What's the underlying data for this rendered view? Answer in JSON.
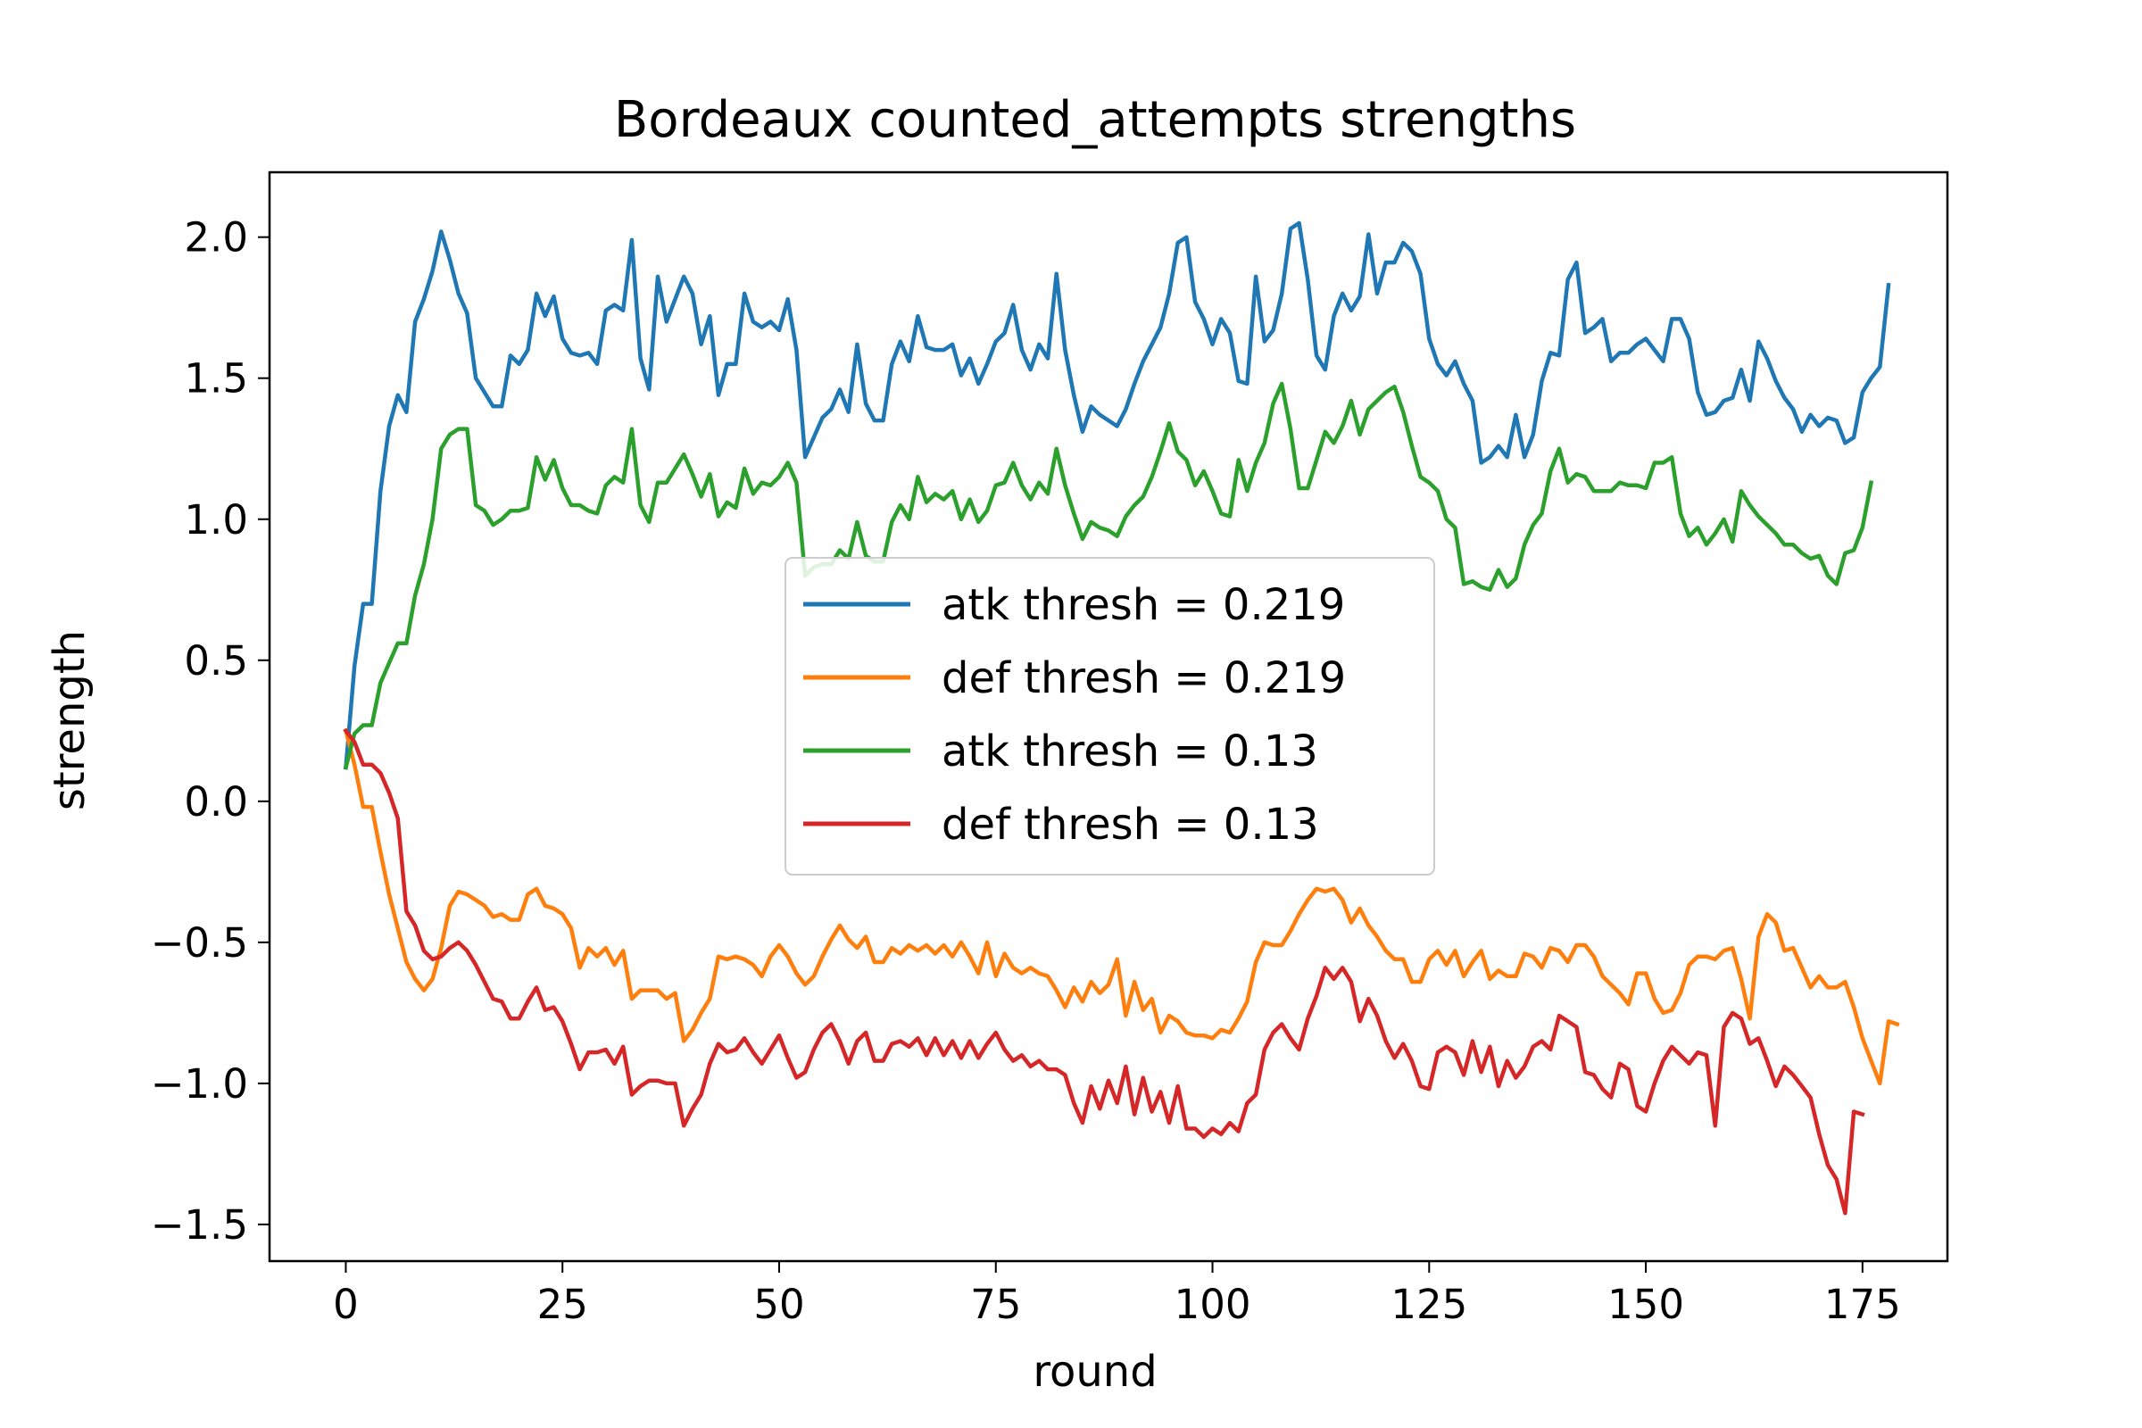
{
  "chart_data": {
    "type": "line",
    "title": "Bordeaux counted_attempts strengths",
    "xlabel": "round",
    "ylabel": "strength",
    "xlim": [
      -8.8,
      184.8
    ],
    "ylim": [
      -1.63,
      2.23
    ],
    "xticks": [
      0,
      25,
      50,
      75,
      100,
      125,
      150,
      175
    ],
    "xtick_labels": [
      "0",
      "25",
      "50",
      "75",
      "100",
      "125",
      "150",
      "175"
    ],
    "yticks": [
      -1.5,
      -1.0,
      -0.5,
      0.0,
      0.5,
      1.0,
      1.5,
      2.0
    ],
    "ytick_labels": [
      "−1.5",
      "−1.0",
      "−0.5",
      "0.0",
      "0.5",
      "1.0",
      "1.5",
      "2.0"
    ],
    "grid": false,
    "legend_position": "center",
    "series": [
      {
        "name": "atk thresh = 0.219",
        "color": "#1f77b4",
        "x_start": 0,
        "values": [
          0.12,
          0.48,
          0.7,
          0.7,
          1.1,
          1.33,
          1.44,
          1.38,
          1.7,
          1.78,
          1.88,
          2.02,
          1.92,
          1.8,
          1.73,
          1.5,
          1.45,
          1.4,
          1.4,
          1.58,
          1.55,
          1.6,
          1.8,
          1.72,
          1.79,
          1.64,
          1.59,
          1.58,
          1.59,
          1.55,
          1.74,
          1.76,
          1.74,
          1.99,
          1.57,
          1.46,
          1.86,
          1.7,
          1.78,
          1.86,
          1.8,
          1.62,
          1.72,
          1.44,
          1.55,
          1.55,
          1.8,
          1.7,
          1.68,
          1.7,
          1.67,
          1.78,
          1.6,
          1.22,
          1.29,
          1.36,
          1.39,
          1.46,
          1.38,
          1.62,
          1.41,
          1.35,
          1.35,
          1.55,
          1.63,
          1.56,
          1.72,
          1.61,
          1.6,
          1.6,
          1.62,
          1.51,
          1.57,
          1.48,
          1.55,
          1.63,
          1.66,
          1.76,
          1.6,
          1.53,
          1.62,
          1.57,
          1.87,
          1.6,
          1.44,
          1.31,
          1.4,
          1.37,
          1.35,
          1.33,
          1.39,
          1.48,
          1.56,
          1.62,
          1.68,
          1.8,
          1.98,
          2.0,
          1.77,
          1.71,
          1.62,
          1.71,
          1.66,
          1.49,
          1.48,
          1.86,
          1.63,
          1.67,
          1.8,
          2.03,
          2.05,
          1.85,
          1.58,
          1.53,
          1.72,
          1.8,
          1.74,
          1.79,
          2.01,
          1.8,
          1.91,
          1.91,
          1.98,
          1.95,
          1.87,
          1.64,
          1.55,
          1.51,
          1.56,
          1.48,
          1.42,
          1.2,
          1.22,
          1.26,
          1.22,
          1.37,
          1.22,
          1.3,
          1.49,
          1.59,
          1.58,
          1.85,
          1.91,
          1.66,
          1.68,
          1.71,
          1.56,
          1.59,
          1.59,
          1.62,
          1.64,
          1.6,
          1.56,
          1.71,
          1.71,
          1.64,
          1.45,
          1.37,
          1.38,
          1.42,
          1.43,
          1.53,
          1.42,
          1.63,
          1.57,
          1.49,
          1.43,
          1.39,
          1.31,
          1.37,
          1.33,
          1.36,
          1.35,
          1.27,
          1.29,
          1.45,
          1.5,
          1.54,
          1.83
        ]
      },
      {
        "name": "def thresh = 0.219",
        "color": "#ff7f0e",
        "x_start": 0,
        "values": [
          0.25,
          0.13,
          -0.02,
          -0.02,
          -0.18,
          -0.33,
          -0.45,
          -0.57,
          -0.63,
          -0.67,
          -0.63,
          -0.52,
          -0.37,
          -0.32,
          -0.33,
          -0.35,
          -0.37,
          -0.41,
          -0.4,
          -0.42,
          -0.42,
          -0.33,
          -0.31,
          -0.37,
          -0.38,
          -0.4,
          -0.45,
          -0.59,
          -0.52,
          -0.55,
          -0.52,
          -0.58,
          -0.53,
          -0.7,
          -0.67,
          -0.67,
          -0.67,
          -0.7,
          -0.68,
          -0.85,
          -0.81,
          -0.75,
          -0.7,
          -0.55,
          -0.56,
          -0.55,
          -0.56,
          -0.58,
          -0.62,
          -0.55,
          -0.51,
          -0.55,
          -0.61,
          -0.65,
          -0.62,
          -0.55,
          -0.49,
          -0.44,
          -0.49,
          -0.52,
          -0.48,
          -0.57,
          -0.57,
          -0.52,
          -0.54,
          -0.51,
          -0.53,
          -0.51,
          -0.54,
          -0.51,
          -0.55,
          -0.5,
          -0.55,
          -0.61,
          -0.5,
          -0.62,
          -0.54,
          -0.59,
          -0.61,
          -0.59,
          -0.61,
          -0.62,
          -0.67,
          -0.73,
          -0.66,
          -0.71,
          -0.64,
          -0.68,
          -0.65,
          -0.56,
          -0.76,
          -0.64,
          -0.74,
          -0.7,
          -0.82,
          -0.76,
          -0.78,
          -0.82,
          -0.83,
          -0.83,
          -0.84,
          -0.81,
          -0.82,
          -0.77,
          -0.71,
          -0.57,
          -0.5,
          -0.51,
          -0.51,
          -0.46,
          -0.4,
          -0.35,
          -0.31,
          -0.32,
          -0.31,
          -0.35,
          -0.43,
          -0.38,
          -0.44,
          -0.48,
          -0.53,
          -0.56,
          -0.56,
          -0.64,
          -0.64,
          -0.56,
          -0.53,
          -0.58,
          -0.53,
          -0.62,
          -0.57,
          -0.53,
          -0.63,
          -0.6,
          -0.62,
          -0.62,
          -0.54,
          -0.55,
          -0.59,
          -0.52,
          -0.53,
          -0.57,
          -0.51,
          -0.51,
          -0.55,
          -0.62,
          -0.65,
          -0.68,
          -0.72,
          -0.61,
          -0.61,
          -0.7,
          -0.75,
          -0.74,
          -0.68,
          -0.58,
          -0.55,
          -0.55,
          -0.56,
          -0.53,
          -0.52,
          -0.63,
          -0.77,
          -0.48,
          -0.4,
          -0.43,
          -0.53,
          -0.52,
          -0.59,
          -0.66,
          -0.62,
          -0.66,
          -0.66,
          -0.64,
          -0.73,
          -0.84,
          -0.92,
          -1.0,
          -0.78,
          -0.79
        ]
      },
      {
        "name": "atk thresh = 0.13",
        "color": "#2ca02c",
        "x_start": 0,
        "values": [
          0.12,
          0.24,
          0.27,
          0.27,
          0.42,
          0.49,
          0.56,
          0.56,
          0.73,
          0.84,
          1.0,
          1.25,
          1.3,
          1.32,
          1.32,
          1.05,
          1.03,
          0.98,
          1.0,
          1.03,
          1.03,
          1.04,
          1.22,
          1.14,
          1.21,
          1.11,
          1.05,
          1.05,
          1.03,
          1.02,
          1.12,
          1.15,
          1.13,
          1.32,
          1.05,
          0.99,
          1.13,
          1.13,
          1.18,
          1.23,
          1.16,
          1.08,
          1.16,
          1.01,
          1.06,
          1.04,
          1.18,
          1.09,
          1.13,
          1.12,
          1.15,
          1.2,
          1.13,
          0.8,
          0.83,
          0.84,
          0.84,
          0.89,
          0.86,
          0.99,
          0.87,
          0.85,
          0.85,
          0.99,
          1.05,
          1.0,
          1.15,
          1.06,
          1.09,
          1.07,
          1.1,
          1.0,
          1.07,
          0.99,
          1.03,
          1.12,
          1.13,
          1.2,
          1.12,
          1.07,
          1.13,
          1.09,
          1.25,
          1.12,
          1.02,
          0.93,
          0.99,
          0.97,
          0.96,
          0.94,
          1.01,
          1.05,
          1.08,
          1.15,
          1.24,
          1.34,
          1.24,
          1.21,
          1.12,
          1.17,
          1.1,
          1.02,
          1.01,
          1.21,
          1.1,
          1.2,
          1.27,
          1.41,
          1.48,
          1.32,
          1.11,
          1.11,
          1.21,
          1.31,
          1.27,
          1.33,
          1.42,
          1.3,
          1.39,
          1.42,
          1.45,
          1.47,
          1.38,
          1.26,
          1.15,
          1.13,
          1.1,
          1.0,
          0.97,
          0.77,
          0.78,
          0.76,
          0.75,
          0.82,
          0.76,
          0.79,
          0.91,
          0.98,
          1.02,
          1.17,
          1.25,
          1.13,
          1.16,
          1.15,
          1.1,
          1.1,
          1.1,
          1.13,
          1.12,
          1.12,
          1.11,
          1.2,
          1.2,
          1.22,
          1.02,
          0.94,
          0.97,
          0.91,
          0.95,
          1.0,
          0.92,
          1.1,
          1.05,
          1.01,
          0.98,
          0.95,
          0.91,
          0.91,
          0.88,
          0.86,
          0.87,
          0.8,
          0.77,
          0.88,
          0.89,
          0.97,
          1.13
        ]
      },
      {
        "name": "def thresh = 0.13",
        "color": "#d62728",
        "x_start": 0,
        "values": [
          0.25,
          0.21,
          0.13,
          0.13,
          0.1,
          0.03,
          -0.06,
          -0.39,
          -0.44,
          -0.53,
          -0.56,
          -0.55,
          -0.52,
          -0.5,
          -0.53,
          -0.58,
          -0.64,
          -0.7,
          -0.71,
          -0.77,
          -0.77,
          -0.71,
          -0.66,
          -0.74,
          -0.73,
          -0.78,
          -0.86,
          -0.95,
          -0.89,
          -0.89,
          -0.88,
          -0.93,
          -0.87,
          -1.04,
          -1.01,
          -0.99,
          -0.99,
          -1.0,
          -1.0,
          -1.15,
          -1.09,
          -1.04,
          -0.93,
          -0.86,
          -0.89,
          -0.88,
          -0.84,
          -0.89,
          -0.93,
          -0.88,
          -0.83,
          -0.91,
          -0.98,
          -0.96,
          -0.88,
          -0.82,
          -0.79,
          -0.85,
          -0.93,
          -0.85,
          -0.82,
          -0.92,
          -0.92,
          -0.86,
          -0.85,
          -0.87,
          -0.84,
          -0.9,
          -0.84,
          -0.9,
          -0.85,
          -0.91,
          -0.85,
          -0.91,
          -0.86,
          -0.82,
          -0.88,
          -0.92,
          -0.9,
          -0.94,
          -0.92,
          -0.95,
          -0.95,
          -0.97,
          -1.07,
          -1.14,
          -1.01,
          -1.09,
          -0.99,
          -1.07,
          -0.94,
          -1.11,
          -0.98,
          -1.1,
          -1.03,
          -1.14,
          -1.01,
          -1.16,
          -1.16,
          -1.19,
          -1.16,
          -1.18,
          -1.14,
          -1.17,
          -1.07,
          -1.04,
          -0.88,
          -0.82,
          -0.79,
          -0.84,
          -0.88,
          -0.77,
          -0.69,
          -0.59,
          -0.63,
          -0.59,
          -0.64,
          -0.78,
          -0.7,
          -0.76,
          -0.85,
          -0.91,
          -0.86,
          -0.92,
          -1.01,
          -1.02,
          -0.89,
          -0.87,
          -0.89,
          -0.97,
          -0.85,
          -0.96,
          -0.87,
          -1.01,
          -0.92,
          -0.98,
          -0.94,
          -0.87,
          -0.85,
          -0.88,
          -0.76,
          -0.78,
          -0.8,
          -0.96,
          -0.97,
          -1.02,
          -1.05,
          -0.93,
          -0.95,
          -1.08,
          -1.1,
          -1.0,
          -0.92,
          -0.87,
          -0.9,
          -0.93,
          -0.89,
          -0.9,
          -1.15,
          -0.8,
          -0.75,
          -0.77,
          -0.86,
          -0.84,
          -0.92,
          -1.01,
          -0.94,
          -0.97,
          -1.01,
          -1.05,
          -1.18,
          -1.29,
          -1.34,
          -1.46,
          -1.1,
          -1.11
        ]
      }
    ]
  }
}
